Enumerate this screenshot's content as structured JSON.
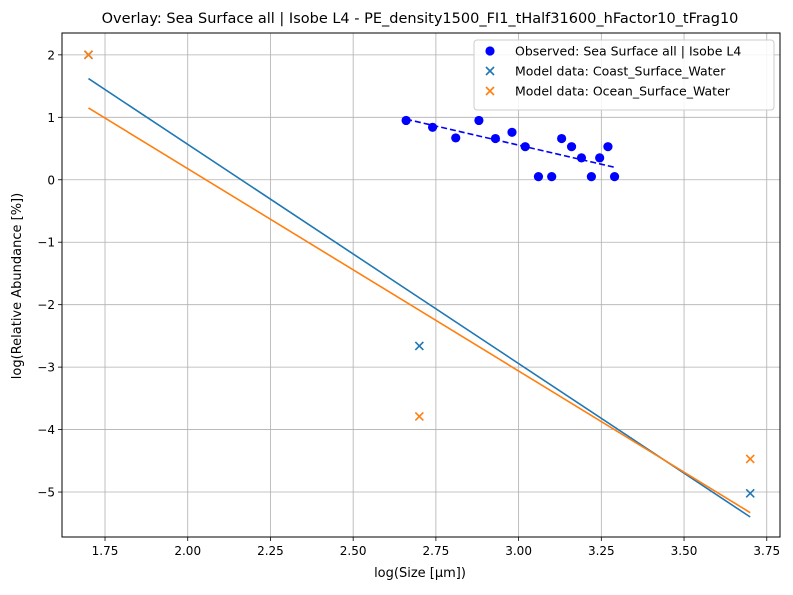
{
  "chart_data": {
    "type": "scatter",
    "title": "Overlay: Sea Surface all | Isobe L4 - PE_density1500_FI1_tHalf31600_hFactor10_tFrag10",
    "xlabel": "log(Size [μm])",
    "ylabel": "log(Relative Abundance [%])",
    "xlim": [
      1.62,
      3.79
    ],
    "ylim": [
      -5.72,
      2.35
    ],
    "xticks": [
      1.75,
      2.0,
      2.25,
      2.5,
      2.75,
      3.0,
      3.25,
      3.5,
      3.75
    ],
    "xtick_labels": [
      "1.75",
      "2.00",
      "2.25",
      "2.50",
      "2.75",
      "3.00",
      "3.25",
      "3.50",
      "3.75"
    ],
    "yticks": [
      2,
      1,
      0,
      -1,
      -2,
      -3,
      -4,
      -5
    ],
    "ytick_labels": [
      "2",
      "1",
      "0",
      "−1",
      "−2",
      "−3",
      "−4",
      "−5"
    ],
    "grid": true,
    "legend_position": "top-right",
    "series": [
      {
        "name": "Observed: Sea Surface all | Isobe L4",
        "kind": "scatter",
        "marker": "circle",
        "color": "#0000ff",
        "points": [
          {
            "x": 2.66,
            "y": 0.95
          },
          {
            "x": 2.74,
            "y": 0.84
          },
          {
            "x": 2.81,
            "y": 0.67
          },
          {
            "x": 2.88,
            "y": 0.95
          },
          {
            "x": 2.93,
            "y": 0.66
          },
          {
            "x": 2.98,
            "y": 0.76
          },
          {
            "x": 3.02,
            "y": 0.53
          },
          {
            "x": 3.06,
            "y": 0.05
          },
          {
            "x": 3.1,
            "y": 0.05
          },
          {
            "x": 3.13,
            "y": 0.66
          },
          {
            "x": 3.16,
            "y": 0.53
          },
          {
            "x": 3.19,
            "y": 0.35
          },
          {
            "x": 3.22,
            "y": 0.05
          },
          {
            "x": 3.245,
            "y": 0.35
          },
          {
            "x": 3.27,
            "y": 0.53
          },
          {
            "x": 3.29,
            "y": 0.05
          }
        ]
      },
      {
        "name": "Model data: Coast_Surface_Water",
        "kind": "scatter",
        "marker": "x",
        "color": "#1f77b4",
        "points": [
          {
            "x": 1.7,
            "y": 2.0
          },
          {
            "x": 2.7,
            "y": -2.66
          },
          {
            "x": 3.7,
            "y": -5.02
          }
        ]
      },
      {
        "name": "Model data: Ocean_Surface_Water",
        "kind": "scatter",
        "marker": "x",
        "color": "#ff7f0e",
        "points": [
          {
            "x": 1.7,
            "y": 2.0
          },
          {
            "x": 2.7,
            "y": -3.79
          },
          {
            "x": 3.7,
            "y": -4.47
          }
        ]
      }
    ],
    "fit_lines": [
      {
        "color": "#0000ff",
        "dashed": true,
        "points": [
          {
            "x": 2.66,
            "y": 0.97
          },
          {
            "x": 3.29,
            "y": 0.2
          }
        ]
      },
      {
        "color": "#1f77b4",
        "dashed": false,
        "points": [
          {
            "x": 1.7,
            "y": 1.62
          },
          {
            "x": 3.7,
            "y": -5.4
          }
        ]
      },
      {
        "color": "#ff7f0e",
        "dashed": false,
        "points": [
          {
            "x": 1.7,
            "y": 1.15
          },
          {
            "x": 3.7,
            "y": -5.33
          }
        ]
      }
    ]
  }
}
